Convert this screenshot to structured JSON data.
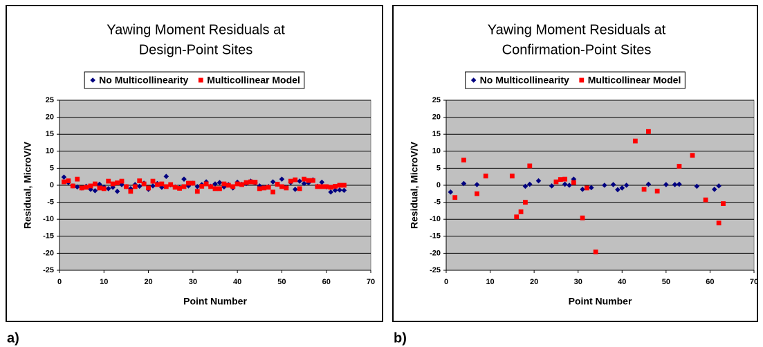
{
  "chart_data": [
    {
      "type": "scatter",
      "panel_label": "a)",
      "title": [
        "Yawing Moment Residuals at",
        "Design-Point Sites"
      ],
      "xlabel": "Point Number",
      "ylabel": "Residual, MicroV/V",
      "xlim": [
        0,
        70
      ],
      "xticks": [
        0,
        10,
        20,
        30,
        40,
        50,
        60,
        70
      ],
      "ylim": [
        -25,
        25
      ],
      "yticks": [
        -25,
        -20,
        -15,
        -10,
        -5,
        0,
        5,
        10,
        15,
        20,
        25
      ],
      "grid": true,
      "legend": "top",
      "series": [
        {
          "name": "No Multicollinearity",
          "color": "#000080",
          "marker": "diamond",
          "x": [
            1,
            2,
            3,
            4,
            5,
            6,
            7,
            8,
            9,
            10,
            11,
            12,
            13,
            14,
            15,
            16,
            17,
            18,
            19,
            20,
            21,
            22,
            23,
            24,
            25,
            26,
            27,
            28,
            29,
            30,
            31,
            32,
            33,
            34,
            35,
            36,
            37,
            38,
            39,
            40,
            41,
            42,
            43,
            44,
            45,
            46,
            47,
            48,
            49,
            50,
            51,
            52,
            53,
            54,
            55,
            56,
            57,
            58,
            59,
            60,
            61,
            62,
            63,
            64
          ],
          "values": [
            2.4,
            0.8,
            -0.2,
            -0.5,
            -0.8,
            -0.3,
            -1.2,
            -1.6,
            0.3,
            -0.5,
            -1.0,
            -0.6,
            -1.8,
            0.2,
            -0.4,
            -1.0,
            0.2,
            -0.3,
            0.6,
            -1.2,
            -0.2,
            0.5,
            -0.6,
            2.6,
            0.1,
            -0.5,
            -0.8,
            1.8,
            -0.2,
            0.6,
            -0.4,
            0.2,
            1.0,
            -0.3,
            0.4,
            0.8,
            -0.5,
            0.2,
            -0.8,
            0.9,
            0.3,
            0.5,
            1.2,
            0.7,
            -0.2,
            -0.6,
            -0.4,
            1.0,
            0.3,
            1.8,
            -0.6,
            0.8,
            -1.2,
            1.2,
            0.5,
            0.7,
            1.6,
            -0.3,
            0.9,
            -0.5,
            -2.0,
            -1.5,
            -1.4,
            -1.5
          ]
        },
        {
          "name": "Multicollinear Model",
          "color": "#ff0000",
          "marker": "square",
          "x": [
            1,
            2,
            3,
            4,
            5,
            6,
            7,
            8,
            9,
            10,
            11,
            12,
            13,
            14,
            15,
            16,
            17,
            18,
            19,
            20,
            21,
            22,
            23,
            24,
            25,
            26,
            27,
            28,
            29,
            30,
            31,
            32,
            33,
            34,
            35,
            36,
            37,
            38,
            39,
            40,
            41,
            42,
            43,
            44,
            45,
            46,
            47,
            48,
            49,
            50,
            51,
            52,
            53,
            54,
            55,
            56,
            57,
            58,
            59,
            60,
            61,
            62,
            63,
            64
          ],
          "values": [
            1.0,
            1.3,
            -0.2,
            1.8,
            -0.8,
            -0.6,
            -0.2,
            0.4,
            -0.8,
            -1.0,
            1.2,
            0.4,
            0.7,
            1.2,
            -0.4,
            -1.8,
            -0.4,
            1.3,
            0.4,
            -0.8,
            1.2,
            0.2,
            0.4,
            -0.4,
            0.2,
            -0.6,
            -0.9,
            -0.4,
            0.6,
            0.6,
            -1.8,
            -0.3,
            0.4,
            -0.4,
            -1.0,
            -1.0,
            0.4,
            0.0,
            -0.4,
            0.4,
            0.2,
            0.8,
            1.0,
            0.9,
            -1.0,
            -0.8,
            -0.6,
            -2.0,
            0.3,
            -0.4,
            -0.8,
            1.2,
            1.6,
            -1.0,
            1.8,
            1.4,
            1.4,
            -0.4,
            -0.4,
            -0.4,
            -0.6,
            -0.3,
            0.0,
            0.0
          ]
        }
      ]
    },
    {
      "type": "scatter",
      "panel_label": "b)",
      "title": [
        "Yawing Moment Residuals at",
        "Confirmation-Point Sites"
      ],
      "xlabel": "Point Number",
      "ylabel": "Residual, MicroV/V",
      "xlim": [
        0,
        70
      ],
      "xticks": [
        0,
        10,
        20,
        30,
        40,
        50,
        60,
        70
      ],
      "ylim": [
        -25,
        25
      ],
      "yticks": [
        -25,
        -20,
        -15,
        -10,
        -5,
        0,
        5,
        10,
        15,
        20,
        25
      ],
      "grid": true,
      "legend": "top",
      "series": [
        {
          "name": "No Multicollinearity",
          "color": "#000080",
          "marker": "diamond",
          "x": [
            1,
            4,
            7,
            18,
            19,
            21,
            24,
            27,
            28,
            29,
            31,
            33,
            36,
            38,
            39,
            40,
            41,
            46,
            50,
            52,
            53,
            57,
            61,
            62
          ],
          "values": [
            -2,
            0.5,
            0.2,
            -0.3,
            0.3,
            1.3,
            -0.2,
            0.3,
            0,
            1.8,
            -1.2,
            -0.7,
            0,
            0.2,
            -1.3,
            -0.8,
            0,
            0.3,
            0.2,
            0.2,
            0.3,
            -0.3,
            -1.2,
            -0.2
          ]
        },
        {
          "name": "Multicollinear Model",
          "color": "#ff0000",
          "marker": "square",
          "x": [
            2,
            4,
            7,
            9,
            15,
            16,
            17,
            18,
            19,
            25,
            26,
            27,
            29,
            31,
            32,
            34,
            43,
            45,
            46,
            48,
            53,
            56,
            59,
            62,
            63
          ],
          "values": [
            -3.6,
            7.4,
            -2.5,
            2.7,
            2.7,
            -9.3,
            -7.8,
            -5,
            5.7,
            1,
            1.7,
            1.8,
            0.8,
            -9.6,
            -0.8,
            -19.6,
            13,
            -1.2,
            15.8,
            -1.7,
            5.6,
            8.8,
            -4.3,
            -11.1,
            -5.4
          ]
        }
      ]
    }
  ]
}
